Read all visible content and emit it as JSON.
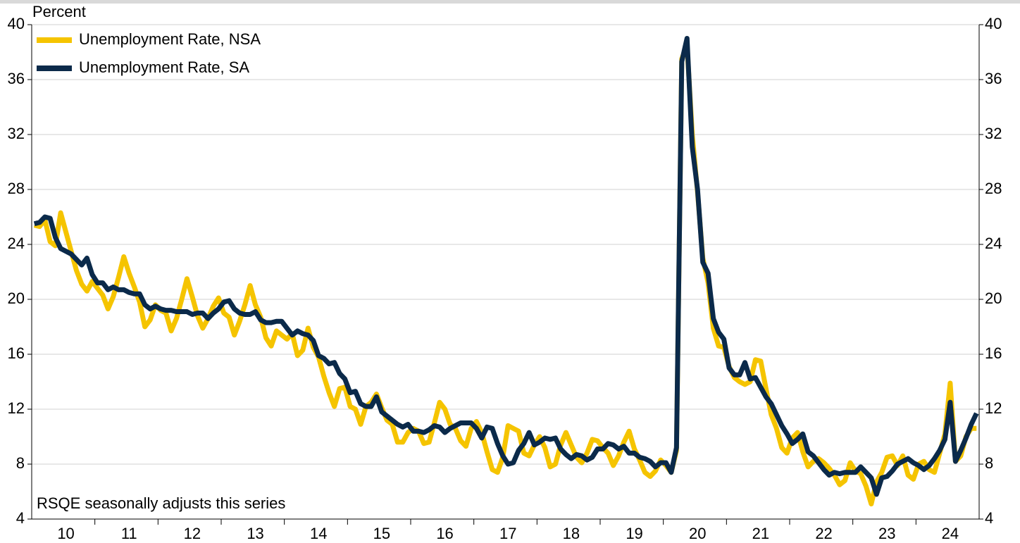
{
  "chart_data": {
    "type": "line",
    "y_label": "Percent",
    "annotation": "RSQE seasonally adjusts this series",
    "categories": [
      null,
      null,
      null,
      null,
      null,
      null,
      "10",
      null,
      null,
      null,
      null,
      null,
      null,
      null,
      null,
      null,
      null,
      null,
      "11",
      null,
      null,
      null,
      null,
      null,
      null,
      null,
      null,
      null,
      null,
      null,
      "12",
      null,
      null,
      null,
      null,
      null,
      null,
      null,
      null,
      null,
      null,
      null,
      "13",
      null,
      null,
      null,
      null,
      null,
      null,
      null,
      null,
      null,
      null,
      null,
      "14",
      null,
      null,
      null,
      null,
      null,
      null,
      null,
      null,
      null,
      null,
      null,
      "15",
      null,
      null,
      null,
      null,
      null,
      null,
      null,
      null,
      null,
      null,
      null,
      "16",
      null,
      null,
      null,
      null,
      null,
      null,
      null,
      null,
      null,
      null,
      null,
      "17",
      null,
      null,
      null,
      null,
      null,
      null,
      null,
      null,
      null,
      null,
      null,
      "18",
      null,
      null,
      null,
      null,
      null,
      null,
      null,
      null,
      null,
      null,
      null,
      "19",
      null,
      null,
      null,
      null,
      null,
      null,
      null,
      null,
      null,
      null,
      null,
      "20",
      null,
      null,
      null,
      null,
      null,
      null,
      null,
      null,
      null,
      null,
      null,
      "21",
      null,
      null,
      null,
      null,
      null,
      null,
      null,
      null,
      null,
      null,
      null,
      "22",
      null,
      null,
      null,
      null,
      null,
      null,
      null,
      null,
      null,
      null,
      null,
      "23",
      null,
      null,
      null,
      null,
      null,
      null,
      null,
      null,
      null,
      null,
      null,
      "24",
      null,
      null,
      null,
      null,
      null
    ],
    "series": [
      {
        "name": "Unemployment Rate, NSA",
        "color": "#f5c400",
        "values": [
          25.4,
          25.3,
          25.8,
          24.2,
          23.9,
          26.3,
          24.9,
          23.5,
          22.1,
          21.1,
          20.6,
          21.3,
          20.8,
          20.3,
          19.3,
          20.2,
          21.6,
          23.1,
          21.9,
          20.9,
          19.8,
          18.0,
          18.5,
          19.6,
          19.2,
          19.0,
          17.7,
          18.6,
          20.0,
          21.5,
          20.2,
          18.8,
          17.9,
          18.6,
          19.5,
          20.1,
          19.0,
          18.7,
          17.4,
          18.4,
          19.6,
          21.0,
          19.6,
          18.7,
          17.2,
          16.6,
          17.7,
          17.4,
          17.1,
          17.5,
          15.9,
          16.3,
          17.9,
          16.5,
          15.8,
          14.4,
          13.2,
          12.2,
          13.5,
          13.6,
          12.2,
          12.0,
          10.9,
          12.2,
          12.5,
          13.1,
          12.1,
          11.2,
          10.9,
          9.6,
          9.6,
          10.3,
          10.6,
          10.4,
          9.5,
          9.6,
          11.0,
          12.5,
          12.0,
          10.9,
          10.6,
          9.7,
          9.3,
          10.6,
          11.1,
          10.3,
          8.9,
          7.6,
          7.4,
          8.5,
          10.8,
          10.6,
          10.4,
          8.8,
          8.6,
          9.4,
          10.0,
          9.2,
          7.8,
          8.0,
          9.4,
          10.3,
          9.4,
          8.5,
          8.1,
          8.8,
          9.8,
          9.7,
          9.2,
          8.8,
          7.9,
          8.6,
          9.6,
          10.4,
          9.1,
          8.3,
          7.4,
          7.1,
          7.5,
          8.3,
          7.9,
          7.4,
          9.0,
          37.5,
          38.5,
          32.0,
          27.8,
          23.0,
          21.2,
          17.9,
          16.6,
          16.5,
          15.1,
          14.3,
          14.0,
          13.8,
          14.0,
          15.6,
          15.5,
          13.5,
          11.6,
          10.6,
          9.2,
          8.8,
          9.9,
          10.3,
          8.9,
          7.8,
          8.2,
          8.4,
          8.1,
          7.7,
          7.2,
          6.5,
          6.8,
          8.1,
          7.5,
          7.3,
          6.4,
          5.1,
          6.7,
          7.4,
          8.5,
          8.6,
          7.9,
          8.6,
          7.2,
          6.9,
          8.0,
          8.2,
          7.6,
          7.4,
          8.8,
          10.2,
          13.9,
          8.2,
          8.6,
          10.0,
          10.6,
          10.6
        ]
      },
      {
        "name": "Unemployment Rate, SA",
        "color": "#0b2a4a",
        "values": [
          25.5,
          25.6,
          26.0,
          25.9,
          24.5,
          23.7,
          23.5,
          23.3,
          22.9,
          22.5,
          23.0,
          21.8,
          21.2,
          21.2,
          20.7,
          20.9,
          20.7,
          20.7,
          20.5,
          20.4,
          20.4,
          19.6,
          19.3,
          19.5,
          19.3,
          19.2,
          19.2,
          19.1,
          19.1,
          19.1,
          18.9,
          19.0,
          19.0,
          18.6,
          19.0,
          19.3,
          19.8,
          19.9,
          19.3,
          19.0,
          18.9,
          18.9,
          19.1,
          18.5,
          18.3,
          18.3,
          18.4,
          18.4,
          17.9,
          17.4,
          17.7,
          17.5,
          17.4,
          17.0,
          15.9,
          15.7,
          15.3,
          15.4,
          14.6,
          14.2,
          13.2,
          13.3,
          12.4,
          12.2,
          12.2,
          12.9,
          11.8,
          11.5,
          11.2,
          10.9,
          10.7,
          10.9,
          10.4,
          10.4,
          10.3,
          10.5,
          10.8,
          10.7,
          10.3,
          10.6,
          10.8,
          11.0,
          11.0,
          11.0,
          10.6,
          9.9,
          10.7,
          10.6,
          9.5,
          8.6,
          8.0,
          8.1,
          9.0,
          9.5,
          10.3,
          9.4,
          9.6,
          9.9,
          9.8,
          9.9,
          9.1,
          8.7,
          8.4,
          8.7,
          8.6,
          8.3,
          8.5,
          9.1,
          9.1,
          9.5,
          9.4,
          9.1,
          9.3,
          8.8,
          8.8,
          8.5,
          8.4,
          8.2,
          7.8,
          8.1,
          8.1,
          7.4,
          9.2,
          37.3,
          39.0,
          31.1,
          28.0,
          22.7,
          21.9,
          18.6,
          17.6,
          17.1,
          15.0,
          14.5,
          14.5,
          15.4,
          14.2,
          14.3,
          13.6,
          12.9,
          12.4,
          11.6,
          10.8,
          10.2,
          9.5,
          9.8,
          10.2,
          8.9,
          8.6,
          8.1,
          7.6,
          7.2,
          7.4,
          7.3,
          7.4,
          7.4,
          7.4,
          7.8,
          7.4,
          7.0,
          5.8,
          7.0,
          7.1,
          7.5,
          8.0,
          8.2,
          8.4,
          8.1,
          7.9,
          7.6,
          7.9,
          8.4,
          9.0,
          9.8,
          12.5,
          8.2,
          9.0,
          9.9,
          10.9,
          11.7
        ]
      }
    ],
    "ylim": [
      4,
      40
    ],
    "yticks": [
      4,
      8,
      12,
      16,
      20,
      24,
      28,
      32,
      36,
      40
    ],
    "y2lim": [
      4,
      40
    ],
    "y2ticks": [
      4,
      8,
      12,
      16,
      20,
      24,
      28,
      32,
      36,
      40
    ],
    "grid": true,
    "legend": "top-left"
  }
}
